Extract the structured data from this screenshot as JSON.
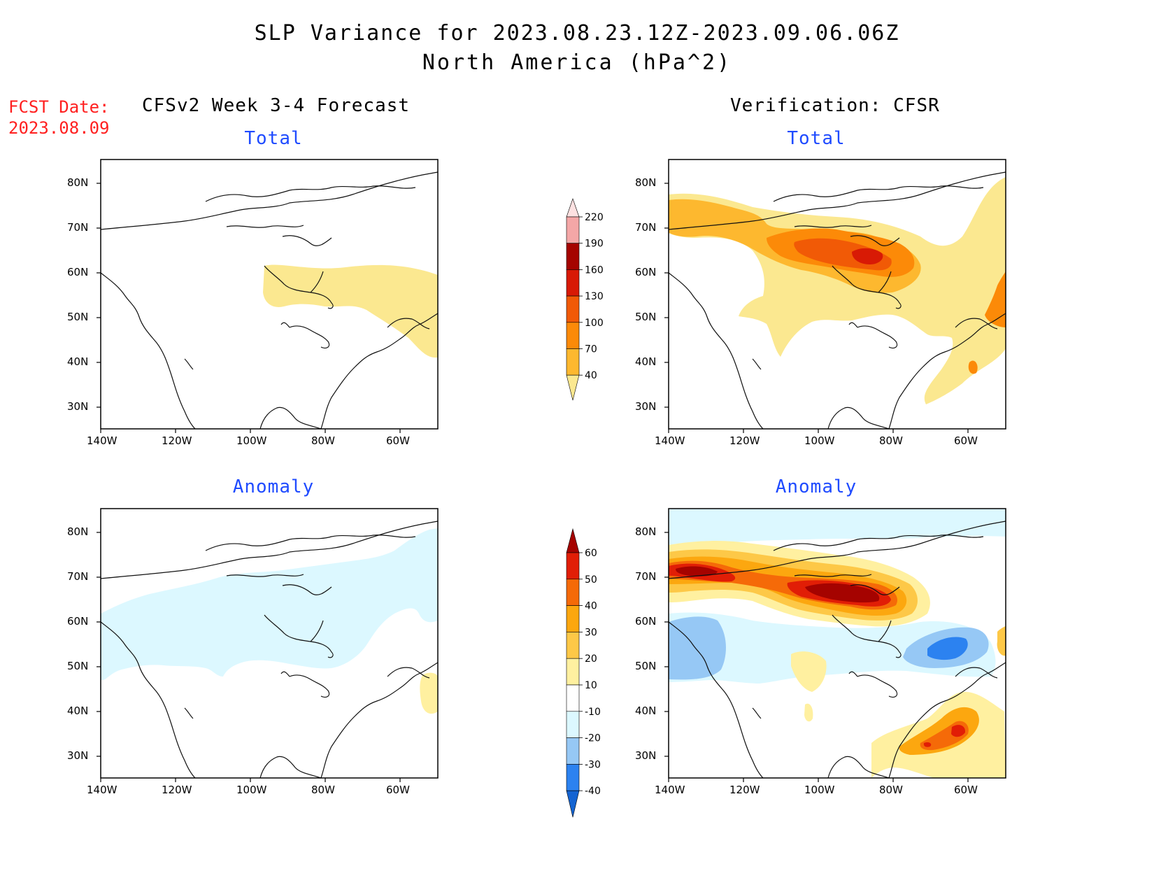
{
  "title": {
    "line1": "SLP Variance for 2023.08.23.12Z-2023.09.06.06Z",
    "line2": "North America (hPa^2)"
  },
  "fcst_date": {
    "label": "FCST Date:",
    "value": "2023.08.09"
  },
  "columns": {
    "left": "CFSv2 Week 3-4 Forecast",
    "right": "Verification: CFSR"
  },
  "panels": {
    "total_label": "Total",
    "anomaly_label": "Anomaly"
  },
  "axes": {
    "lat_ticks": [
      "80N",
      "70N",
      "60N",
      "50N",
      "40N",
      "30N"
    ],
    "lon_ticks": [
      "140W",
      "120W",
      "100W",
      "80W",
      "60W"
    ]
  },
  "colorbars": {
    "total": {
      "levels": [
        "40",
        "70",
        "100",
        "130",
        "160",
        "190",
        "220"
      ],
      "colors": [
        "#fbe890",
        "#fdb82f",
        "#fc8a08",
        "#f15a06",
        "#d81a05",
        "#a50300",
        "#f4a7a7",
        "#fde1e1"
      ]
    },
    "anomaly": {
      "levels": [
        "-40",
        "-30",
        "-20",
        "-10",
        "10",
        "20",
        "30",
        "40",
        "50",
        "60"
      ],
      "colors": [
        "#1464d2",
        "#2c82f0",
        "#96c8f5",
        "#dcf8ff",
        "#ffffff",
        "#fff0a0",
        "#fdc847",
        "#fca70f",
        "#f56a08",
        "#e11e06",
        "#a50300"
      ]
    }
  }
}
